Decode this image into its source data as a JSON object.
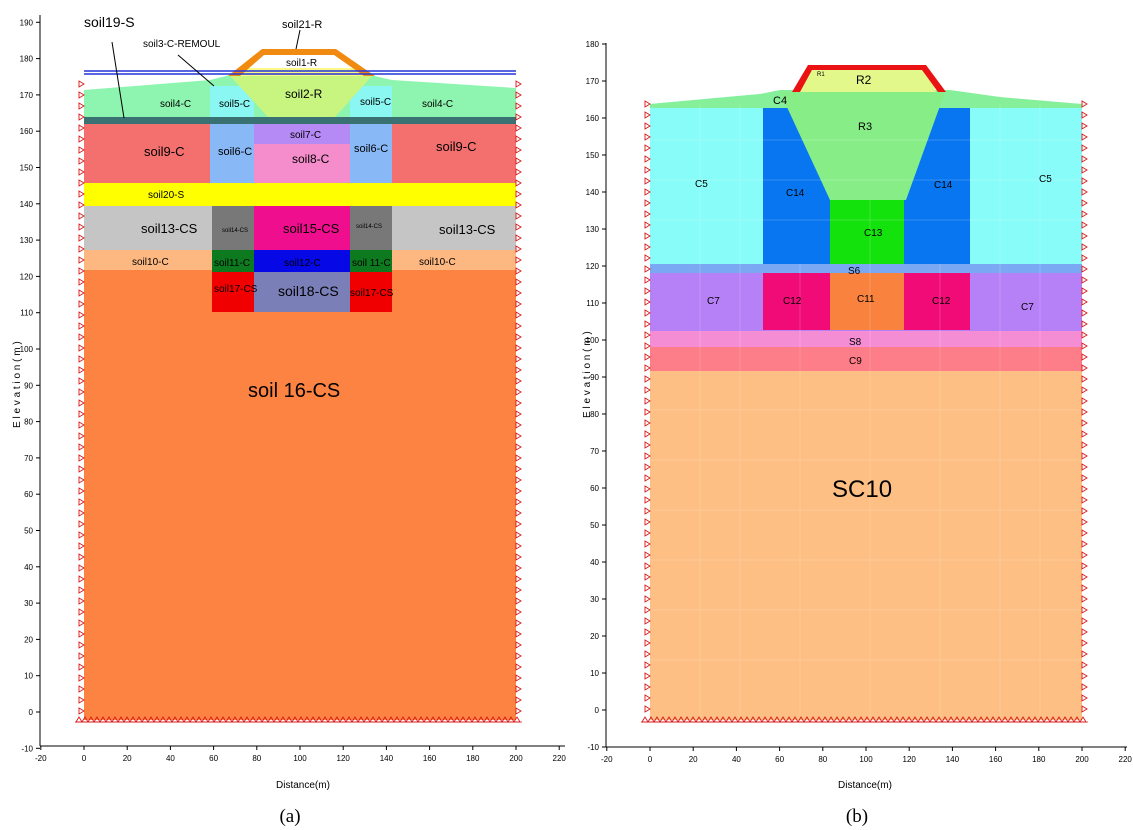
{
  "panels": [
    {
      "id": "a",
      "caption": "(a)",
      "xlabel": "Distance(m)",
      "ylabel": "E l e v a t i o n  ( m )",
      "xlim": [
        -20,
        220
      ],
      "ylim": [
        -10,
        190
      ],
      "xticks": [
        "-20",
        "0",
        "20",
        "40",
        "60",
        "80",
        "100",
        "120",
        "140",
        "160",
        "180",
        "200",
        "220"
      ],
      "yticks": [
        "-10",
        "0",
        "10",
        "20",
        "30",
        "40",
        "50",
        "60",
        "70",
        "80",
        "90",
        "100",
        "110",
        "120",
        "130",
        "140",
        "150",
        "160",
        "170",
        "180",
        "190"
      ],
      "labels": {
        "soil19": "soil19-S",
        "soil3": "soil3-C-REMOUL",
        "soil21": "soil21-R",
        "soil1": "soil1-R",
        "soil2": "soil2-R",
        "soil4_left": "soil4-C",
        "soil4_right": "soil4-C",
        "soil5_left": "soil5-C",
        "soil5_right": "soil5-C",
        "soil7": "soil7-C",
        "soil8": "soil8-C",
        "soil6_left": "soil6-C",
        "soil6_right": "soil6-C",
        "soil9_left": "soil9-C",
        "soil9_right": "soil9-C",
        "soil20": "soil20-S",
        "soil13_left": "soil13-CS",
        "soil13_right": "soil13-CS",
        "soil14_left": "soil14-CS",
        "soil14_right": "soil14-CS",
        "soil15": "soil15-CS",
        "soil10_left": "soil10-C",
        "soil10_right": "soil10-C",
        "soil11_left": "soil11-C",
        "soil11_right": "soil 11-C",
        "soil12": "soil12-C",
        "soil17_left": "soil17-CS",
        "soil17_right": "soil17-CS",
        "soil18": "soil18-CS",
        "soil16": "soil 16-CS"
      }
    },
    {
      "id": "b",
      "caption": "(b)",
      "xlabel": "Distance(m)",
      "ylabel": "E l e v a t i o n  ( m )",
      "xlim": [
        -20,
        220
      ],
      "ylim": [
        -10,
        180
      ],
      "xticks": [
        "-20",
        "0",
        "20",
        "40",
        "60",
        "80",
        "100",
        "120",
        "140",
        "160",
        "180",
        "200",
        "220"
      ],
      "yticks": [
        "-10",
        "0",
        "10",
        "20",
        "30",
        "40",
        "50",
        "60",
        "70",
        "80",
        "90",
        "100",
        "110",
        "120",
        "130",
        "140",
        "150",
        "160",
        "170",
        "180"
      ],
      "labels": {
        "R1": "R1",
        "R2": "R2",
        "C4": "C4",
        "R3": "R3",
        "C5_left": "C5",
        "C5_right": "C5",
        "C14_left": "C14",
        "C14_right": "C14",
        "C13": "C13",
        "S6": "S6",
        "C7_left": "C7",
        "C7_right": "C7",
        "C12_left": "C12",
        "C12_right": "C12",
        "C11": "C11",
        "S8": "S8",
        "C9": "C9",
        "SC10": "SC10"
      }
    }
  ],
  "colors": {
    "soil16": "#fd8343",
    "soil9": "#f3706f",
    "soil20": "#ffff00",
    "soil13": "#c5c5c5",
    "soil10": "#fdb882",
    "soil6": "#89b8f6",
    "soil7": "#b58af5",
    "soil8": "#f58ccc",
    "soil15": "#ef0f8e",
    "soil14": "#787878",
    "soil11": "#0e7a1f",
    "soil12": "#0608e6",
    "soil17": "#f00000",
    "soil18": "#7a7fb8",
    "soil4": "#8ef5b0",
    "soil5": "#8af7f2",
    "soil2": "#c7f57f",
    "soil1": "#fbf886",
    "soil21": "#f18a10",
    "soil19": "#3a7273",
    "blue_line": "#2432d8",
    "SC10": "#fdbf84",
    "C9": "#fd7d88",
    "S8": "#f58dd4",
    "C7": "#b680f7",
    "C12": "#f00b77",
    "C11": "#f8823e",
    "S6": "#7aa8f2",
    "C5": "#88fcf8",
    "C14": "#0876f0",
    "C13": "#14e20c",
    "R3": "#87ee87",
    "R2": "#e3f88a",
    "R1": "#ea1212",
    "support": "#d81818"
  }
}
